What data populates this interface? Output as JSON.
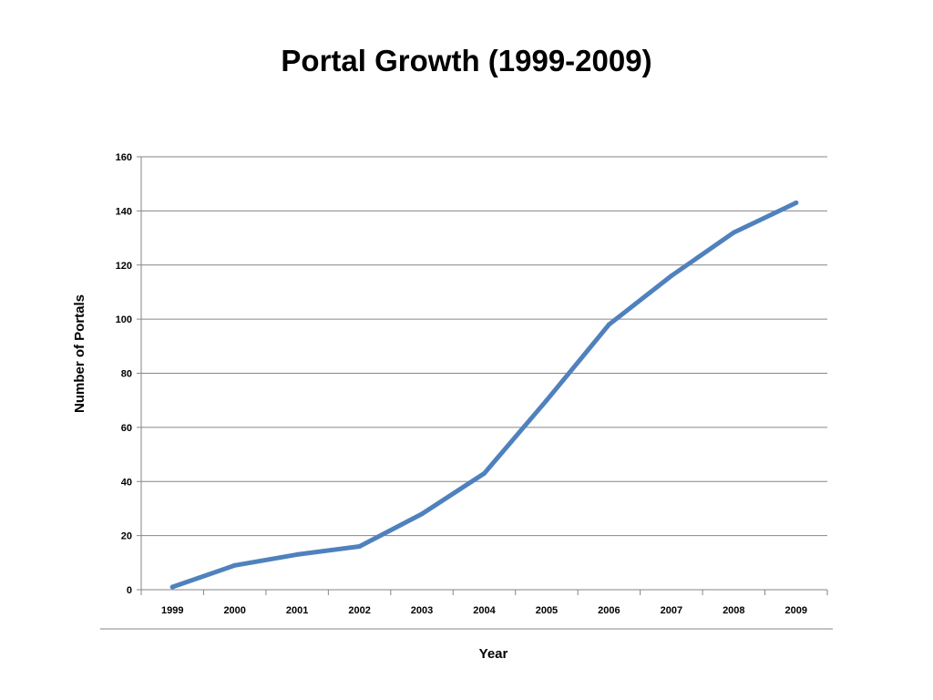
{
  "chart_data": {
    "type": "line",
    "title": "Portal Growth (1999-2009)",
    "xlabel": "Year",
    "ylabel": "Number of Portals",
    "categories": [
      "1999",
      "2000",
      "2001",
      "2002",
      "2003",
      "2004",
      "2005",
      "2006",
      "2007",
      "2008",
      "2009"
    ],
    "series": [
      {
        "values": [
          1,
          9,
          13,
          16,
          28,
          43,
          70,
          98,
          116,
          132,
          143
        ]
      }
    ],
    "ylim": [
      0,
      160
    ],
    "yticks": [
      0,
      20,
      40,
      60,
      80,
      100,
      120,
      140,
      160
    ],
    "grid": true,
    "legend": "none",
    "colors": {
      "line": "#4F81BD",
      "grid": "#868686",
      "axis": "#868686"
    }
  }
}
